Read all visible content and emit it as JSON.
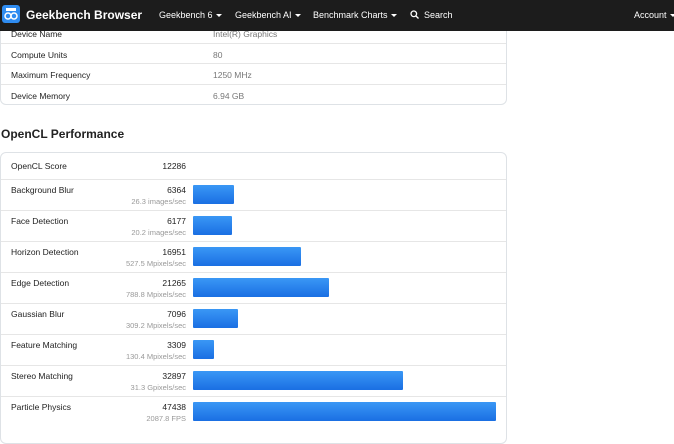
{
  "navbar": {
    "brand": "Geekbench Browser",
    "menu": [
      "Geekbench 6",
      "Geekbench AI",
      "Benchmark Charts"
    ],
    "search": "Search",
    "account": "Account"
  },
  "device_info": {
    "rows": [
      [
        "Device Name",
        "Intel(R) Graphics"
      ],
      [
        "Compute Units",
        "80"
      ],
      [
        "Maximum Frequency",
        "1250 MHz"
      ],
      [
        "Device Memory",
        "6.94 GB"
      ]
    ]
  },
  "opencl": {
    "title": "OpenCL Performance",
    "score_label": "OpenCL Score",
    "score": 12286,
    "workloads": [
      {
        "name": "Background Blur",
        "score": 6364,
        "rate": "26.3 images/sec"
      },
      {
        "name": "Face Detection",
        "score": 6177,
        "rate": "20.2 images/sec"
      },
      {
        "name": "Horizon Detection",
        "score": 16951,
        "rate": "527.5 Mpixels/sec"
      },
      {
        "name": "Edge Detection",
        "score": 21265,
        "rate": "788.8 Mpixels/sec"
      },
      {
        "name": "Gaussian Blur",
        "score": 7096,
        "rate": "309.2 Mpixels/sec"
      },
      {
        "name": "Feature Matching",
        "score": 3309,
        "rate": "130.4 Mpixels/sec"
      },
      {
        "name": "Stereo Matching",
        "score": 32897,
        "rate": "31.3 Gpixels/sec"
      },
      {
        "name": "Particle Physics",
        "score": 47438,
        "rate": "2087.8 FPS"
      }
    ]
  }
}
